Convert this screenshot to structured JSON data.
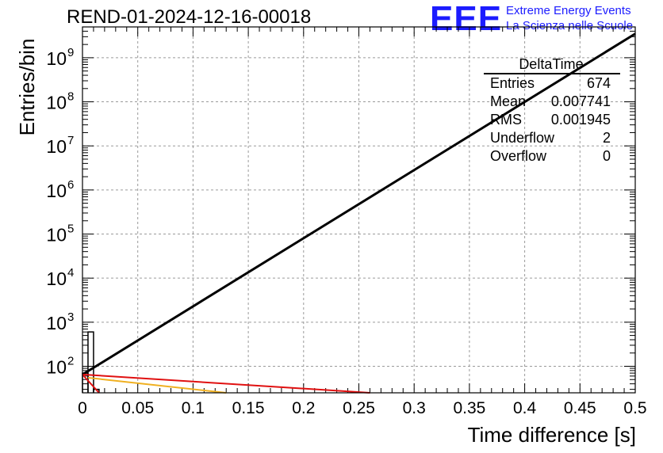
{
  "title": "REND-01-2024-12-16-00018",
  "logo": {
    "mark": "EEE",
    "line1": "Extreme Energy Events",
    "line2": "La Scienza nelle Scuole",
    "color": "#1c1cff"
  },
  "stats": {
    "name": "DeltaTime",
    "rows": [
      {
        "label": "Entries",
        "value": "674"
      },
      {
        "label": "Mean",
        "value": "0.007741"
      },
      {
        "label": "RMS",
        "value": "0.001945"
      },
      {
        "label": "Underflow",
        "value": "2"
      },
      {
        "label": "Overflow",
        "value": "0"
      }
    ]
  },
  "chart_data": {
    "type": "line",
    "title": "REND-01-2024-12-16-00018",
    "xlabel": "Time difference [s]",
    "ylabel": "Entries/bin",
    "xlim": [
      0,
      0.5
    ],
    "ylim": [
      25,
      5000000000
    ],
    "y_scale": "log",
    "grid": true,
    "x_ticks": [
      "0",
      "0.05",
      "0.1",
      "0.15",
      "0.2",
      "0.25",
      "0.3",
      "0.35",
      "0.4",
      "0.45",
      "0.5"
    ],
    "y_ticks": [
      {
        "value": 100,
        "base": "10",
        "exp": "2"
      },
      {
        "value": 1000,
        "base": "10",
        "exp": "3"
      },
      {
        "value": 10000,
        "base": "10",
        "exp": "4"
      },
      {
        "value": 100000,
        "base": "10",
        "exp": "5"
      },
      {
        "value": 1000000,
        "base": "10",
        "exp": "6"
      },
      {
        "value": 10000000,
        "base": "10",
        "exp": "7"
      },
      {
        "value": 100000000,
        "base": "10",
        "exp": "8"
      },
      {
        "value": 1000000000,
        "base": "10",
        "exp": "9"
      }
    ],
    "histogram": {
      "color": "#000000",
      "bins": [
        {
          "x0": 0.0,
          "x1": 0.005,
          "y": 70
        },
        {
          "x0": 0.005,
          "x1": 0.01,
          "y": 600
        },
        {
          "x0": 0.01,
          "x1": 0.015,
          "y": 30
        }
      ]
    },
    "series": [
      {
        "color": "#000000",
        "x": [
          0.0,
          0.5
        ],
        "y": [
          65,
          3500000000
        ]
      },
      {
        "color": "#e01010",
        "x": [
          0.0,
          0.26
        ],
        "y": [
          65,
          25
        ]
      },
      {
        "color": "#f0b020",
        "x": [
          0.005,
          0.13
        ],
        "y": [
          55,
          25
        ]
      },
      {
        "color": "#e01010",
        "x": [
          0.0,
          0.015
        ],
        "y": [
          65,
          25
        ]
      }
    ]
  }
}
